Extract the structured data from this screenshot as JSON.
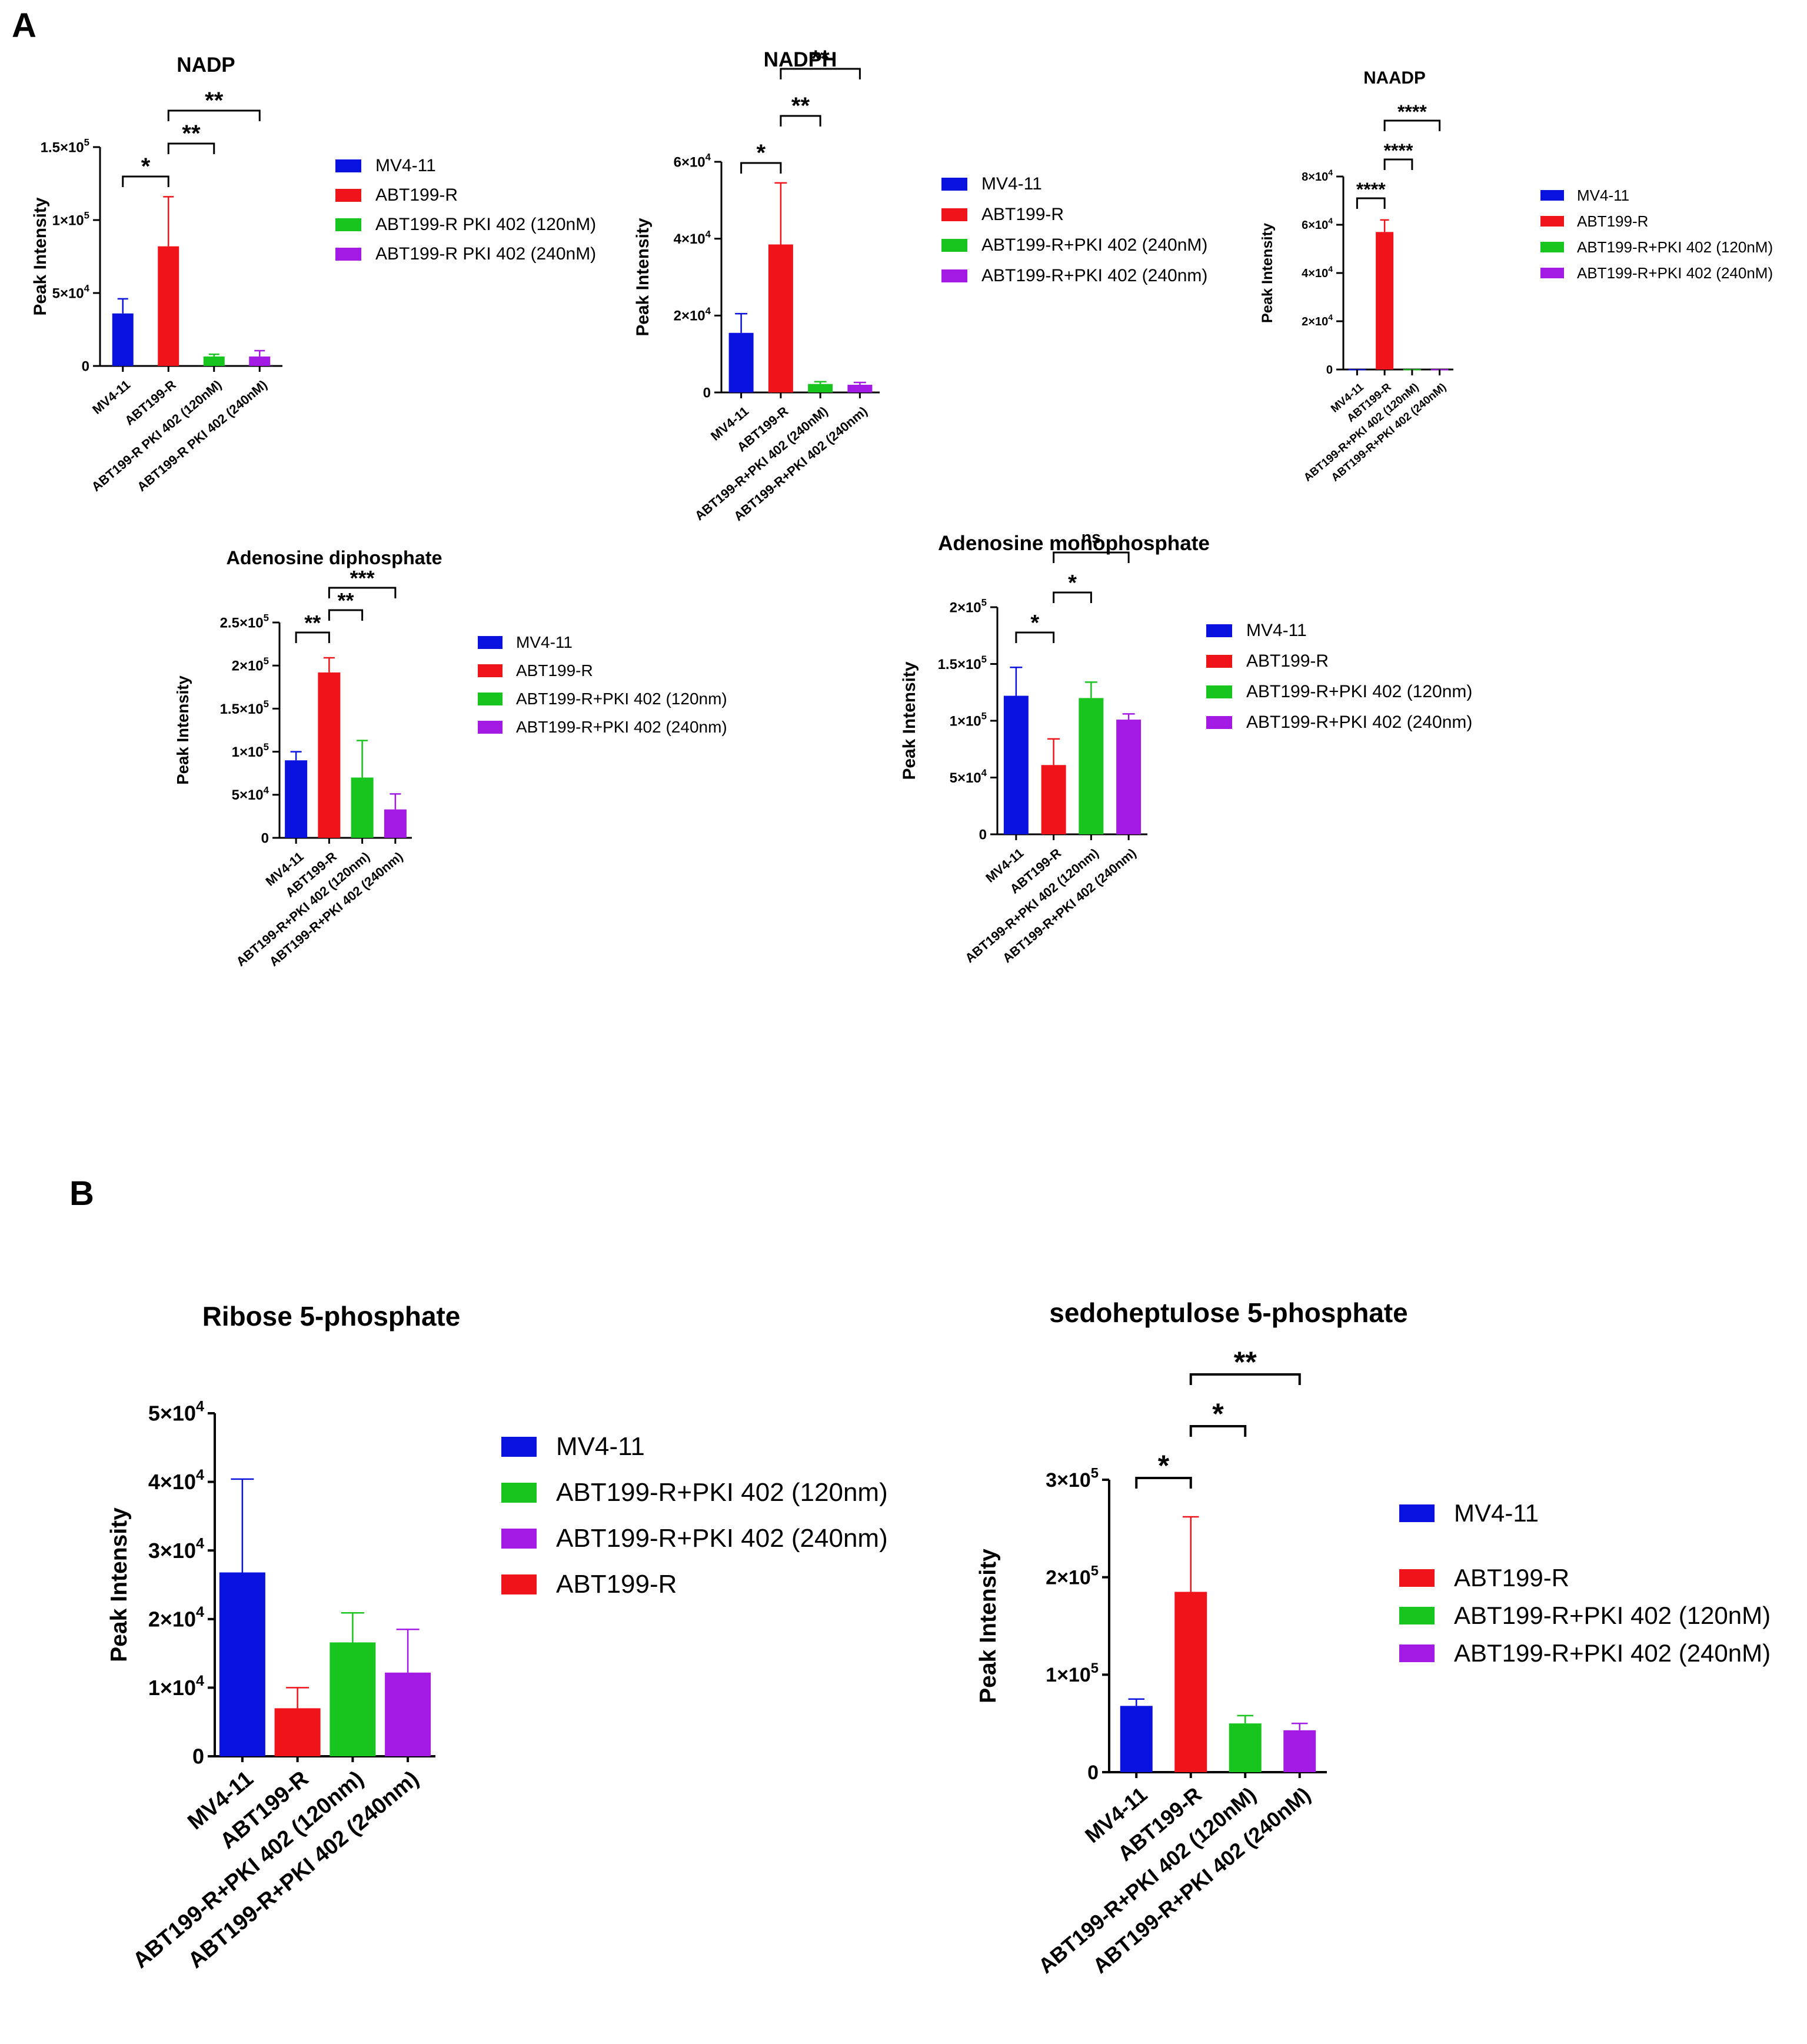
{
  "figure": {
    "panel_labels": [
      "A",
      "B"
    ],
    "colors": {
      "blue": "#0a12e0",
      "red": "#f0141a",
      "green": "#18c41e",
      "purple": "#a21ae4",
      "axis": "#000000"
    }
  },
  "chart_data": [
    {
      "id": "nadp",
      "type": "bar",
      "title": "NADP",
      "ylabel": "Peak Intensity",
      "xlabel": "",
      "categories": [
        "MV4-11",
        "ABT199-R",
        "ABT199-R PKI 402 (120nM)",
        "ABT199-R PKI 402 (240nM)"
      ],
      "values": [
        36000,
        82000,
        6500,
        6500
      ],
      "errors": [
        10000,
        34000,
        1500,
        4000
      ],
      "colors": [
        "blue",
        "red",
        "green",
        "purple"
      ],
      "ylim": [
        0,
        150000
      ],
      "yticks": [
        {
          "v": 0,
          "m": "0",
          "e": ""
        },
        {
          "v": 50000,
          "m": "5×10",
          "e": "4"
        },
        {
          "v": 100000,
          "m": "1×10",
          "e": "5"
        },
        {
          "v": 150000,
          "m": "1.5×10",
          "e": "5"
        }
      ],
      "legend": [
        {
          "label": "MV4-11",
          "color": "blue"
        },
        {
          "label": "ABT199-R",
          "color": "red"
        },
        {
          "label": "ABT199-R PKI 402 (120nM)",
          "color": "green"
        },
        {
          "label": "ABT199-R PKI 402 (240nM)",
          "color": "purple"
        }
      ],
      "annotations": [
        {
          "from": 0,
          "to": 1,
          "label": "*"
        },
        {
          "from": 1,
          "to": 2,
          "label": "**"
        },
        {
          "from": 1,
          "to": 3,
          "label": "**"
        }
      ]
    },
    {
      "id": "nadph",
      "type": "bar",
      "title": "NADPH",
      "ylabel": "Peak Intensity",
      "xlabel": "",
      "categories": [
        "MV4-11",
        "ABT199-R",
        "ABT199-R+PKI 402 (240nM)",
        "ABT199-R+PKI 402 (240nm)"
      ],
      "values": [
        15500,
        38500,
        2200,
        2000
      ],
      "errors": [
        5000,
        16000,
        600,
        600
      ],
      "colors": [
        "blue",
        "red",
        "green",
        "purple"
      ],
      "ylim": [
        0,
        60000
      ],
      "yticks": [
        {
          "v": 0,
          "m": "0",
          "e": ""
        },
        {
          "v": 20000,
          "m": "2×10",
          "e": "4"
        },
        {
          "v": 40000,
          "m": "4×10",
          "e": "4"
        },
        {
          "v": 60000,
          "m": "6×10",
          "e": "4"
        }
      ],
      "legend": [
        {
          "label": "MV4-11",
          "color": "blue"
        },
        {
          "label": "ABT199-R",
          "color": "red"
        },
        {
          "label": "ABT199-R+PKI 402 (240nM)",
          "color": "green"
        },
        {
          "label": "ABT199-R+PKI 402 (240nm)",
          "color": "purple"
        }
      ],
      "annotations": [
        {
          "from": 0,
          "to": 1,
          "label": "*"
        },
        {
          "from": 1,
          "to": 2,
          "label": "**"
        },
        {
          "from": 1,
          "to": 3,
          "label": "**"
        }
      ]
    },
    {
      "id": "naadp",
      "type": "bar",
      "title": "NAADP",
      "ylabel": "Peak Intensity",
      "xlabel": "",
      "categories": [
        "MV4-11",
        "ABT199-R",
        "ABT199-R+PKI 402 (120nM)",
        "ABT199-R+PKI 402 (240nM)"
      ],
      "values": [
        150,
        57000,
        150,
        150
      ],
      "errors": [
        0,
        5000,
        0,
        0
      ],
      "colors": [
        "blue",
        "red",
        "green",
        "purple"
      ],
      "ylim": [
        0,
        80000
      ],
      "yticks": [
        {
          "v": 0,
          "m": "0",
          "e": ""
        },
        {
          "v": 20000,
          "m": "2×10",
          "e": "4"
        },
        {
          "v": 40000,
          "m": "4×10",
          "e": "4"
        },
        {
          "v": 60000,
          "m": "6×10",
          "e": "4"
        },
        {
          "v": 80000,
          "m": "8×10",
          "e": "4"
        }
      ],
      "legend": [
        {
          "label": "MV4-11",
          "color": "blue"
        },
        {
          "label": "ABT199-R",
          "color": "red"
        },
        {
          "label": "ABT199-R+PKI 402 (120nM)",
          "color": "green"
        },
        {
          "label": "ABT199-R+PKI 402 (240nM)",
          "color": "purple"
        }
      ],
      "annotations": [
        {
          "from": 0,
          "to": 1,
          "label": "****"
        },
        {
          "from": 1,
          "to": 2,
          "label": "****"
        },
        {
          "from": 1,
          "to": 3,
          "label": "****"
        }
      ]
    },
    {
      "id": "adp",
      "type": "bar",
      "title": "Adenosine diphosphate",
      "ylabel": "Peak Intensity",
      "xlabel": "",
      "categories": [
        "MV4-11",
        "ABT199-R",
        "ABT199-R+PKI 402 (120nm)",
        "ABT199-R+PKI 402 (240nm)"
      ],
      "values": [
        90000,
        192000,
        70000,
        33000
      ],
      "errors": [
        10000,
        17000,
        43000,
        18000
      ],
      "colors": [
        "blue",
        "red",
        "green",
        "purple"
      ],
      "ylim": [
        0,
        250000
      ],
      "yticks": [
        {
          "v": 0,
          "m": "0",
          "e": ""
        },
        {
          "v": 50000,
          "m": "5×10",
          "e": "4"
        },
        {
          "v": 100000,
          "m": "1×10",
          "e": "5"
        },
        {
          "v": 150000,
          "m": "1.5×10",
          "e": "5"
        },
        {
          "v": 200000,
          "m": "2×10",
          "e": "5"
        },
        {
          "v": 250000,
          "m": "2.5×10",
          "e": "5"
        }
      ],
      "legend": [
        {
          "label": "MV4-11",
          "color": "blue"
        },
        {
          "label": "ABT199-R",
          "color": "red"
        },
        {
          "label": "ABT199-R+PKI 402 (120nm)",
          "color": "green"
        },
        {
          "label": "ABT199-R+PKI 402 (240nm)",
          "color": "purple"
        }
      ],
      "annotations": [
        {
          "from": 0,
          "to": 1,
          "label": "**"
        },
        {
          "from": 1,
          "to": 2,
          "label": "**"
        },
        {
          "from": 1,
          "to": 3,
          "label": "***"
        }
      ]
    },
    {
      "id": "amp",
      "type": "bar",
      "title": "Adenosine monophosphate",
      "ylabel": "Peak Intensity",
      "xlabel": "",
      "categories": [
        "MV4-11",
        "ABT199-R",
        "ABT199-R+PKI 402 (120nm)",
        "ABT199-R+PKI 402 (240nm)"
      ],
      "values": [
        122000,
        61000,
        120000,
        101000
      ],
      "errors": [
        25000,
        23000,
        14000,
        5000
      ],
      "colors": [
        "blue",
        "red",
        "green",
        "purple"
      ],
      "ylim": [
        0,
        200000
      ],
      "yticks": [
        {
          "v": 0,
          "m": "0",
          "e": ""
        },
        {
          "v": 50000,
          "m": "5×10",
          "e": "4"
        },
        {
          "v": 100000,
          "m": "1×10",
          "e": "5"
        },
        {
          "v": 150000,
          "m": "1.5×10",
          "e": "5"
        },
        {
          "v": 200000,
          "m": "2×10",
          "e": "5"
        }
      ],
      "legend": [
        {
          "label": "MV4-11",
          "color": "blue"
        },
        {
          "label": "ABT199-R",
          "color": "red"
        },
        {
          "label": "ABT199-R+PKI 402 (120nm)",
          "color": "green"
        },
        {
          "label": "ABT199-R+PKI 402 (240nm)",
          "color": "purple"
        }
      ],
      "annotations": [
        {
          "from": 0,
          "to": 1,
          "label": "*"
        },
        {
          "from": 1,
          "to": 2,
          "label": "*"
        },
        {
          "from": 1,
          "to": 3,
          "label": "ns"
        }
      ]
    },
    {
      "id": "r5p",
      "type": "bar",
      "title": "Ribose 5-phosphate",
      "ylabel": "Peak Intensity",
      "xlabel": "",
      "categories": [
        "MV4-11",
        "ABT199-R",
        "ABT199-R+PKI 402 (120nm)",
        "ABT199-R+PKI 402 (240nm)"
      ],
      "values": [
        26800,
        7000,
        16600,
        12200
      ],
      "errors": [
        13600,
        3000,
        4300,
        6300
      ],
      "colors": [
        "blue",
        "red",
        "green",
        "purple"
      ],
      "ylim": [
        0,
        50000
      ],
      "yticks": [
        {
          "v": 0,
          "m": "0",
          "e": ""
        },
        {
          "v": 10000,
          "m": "1×10",
          "e": "4"
        },
        {
          "v": 20000,
          "m": "2×10",
          "e": "4"
        },
        {
          "v": 30000,
          "m": "3×10",
          "e": "4"
        },
        {
          "v": 40000,
          "m": "4×10",
          "e": "4"
        },
        {
          "v": 50000,
          "m": "5×10",
          "e": "4"
        }
      ],
      "legend": [
        {
          "label": "MV4-11",
          "color": "blue"
        },
        {
          "label": "ABT199-R+PKI 402 (120nm)",
          "color": "green"
        },
        {
          "label": "ABT199-R+PKI 402 (240nm)",
          "color": "purple"
        },
        {
          "label": "ABT199-R",
          "color": "red"
        }
      ],
      "annotations": []
    },
    {
      "id": "s7p",
      "type": "bar",
      "title": "sedoheptulose 5-phosphate",
      "ylabel": "Peak Intensity",
      "xlabel": "",
      "categories": [
        "MV4-11",
        "ABT199-R",
        "ABT199-R+PKI 402 (120nM)",
        "ABT199-R+PKI 402 (240nM)"
      ],
      "values": [
        68000,
        185000,
        50000,
        43000
      ],
      "errors": [
        7000,
        77000,
        8000,
        7000
      ],
      "colors": [
        "blue",
        "red",
        "green",
        "purple"
      ],
      "ylim": [
        0,
        300000
      ],
      "yticks": [
        {
          "v": 0,
          "m": "0",
          "e": ""
        },
        {
          "v": 100000,
          "m": "1×10",
          "e": "5"
        },
        {
          "v": 200000,
          "m": "2×10",
          "e": "5"
        },
        {
          "v": 300000,
          "m": "3×10",
          "e": "5"
        }
      ],
      "legend": [
        {
          "label": "MV4-11",
          "color": "blue"
        },
        {
          "label": "ABT199-R",
          "color": "red"
        },
        {
          "label": "ABT199-R+PKI 402 (120nM)",
          "color": "green"
        },
        {
          "label": "ABT199-R+PKI 402 (240nM)",
          "color": "purple"
        }
      ],
      "annotations": [
        {
          "from": 0,
          "to": 1,
          "label": "*"
        },
        {
          "from": 1,
          "to": 2,
          "label": "*"
        },
        {
          "from": 1,
          "to": 3,
          "label": "**"
        }
      ]
    }
  ]
}
